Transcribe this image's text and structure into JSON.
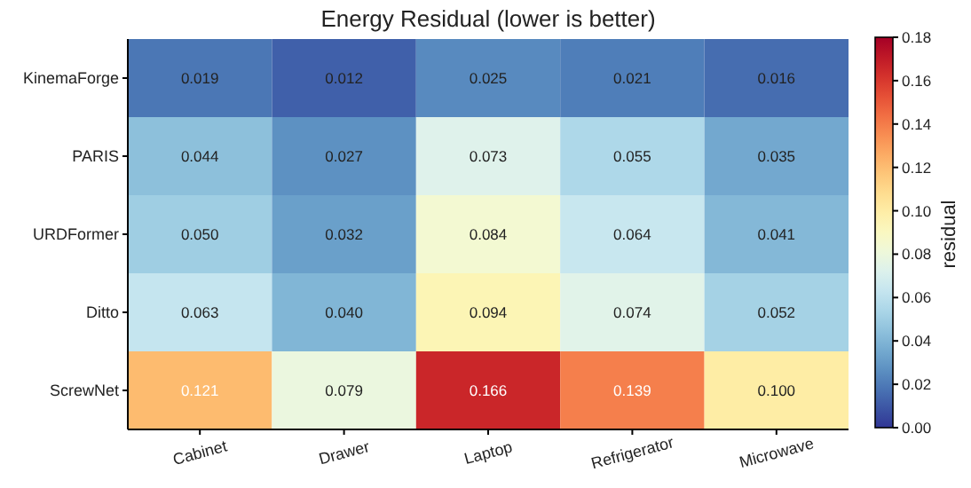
{
  "chart_data": {
    "type": "heatmap",
    "title": "Energy Residual (lower is better)",
    "categories": [
      "Cabinet",
      "Drawer",
      "Laptop",
      "Refrigerator",
      "Microwave"
    ],
    "y_categories": [
      "KinemaForge",
      "PARIS",
      "URDFormer",
      "Ditto",
      "ScrewNet"
    ],
    "cells": [
      [
        0.019,
        0.012,
        0.025,
        0.021,
        0.016
      ],
      [
        0.044,
        0.027,
        0.073,
        0.055,
        0.035
      ],
      [
        0.05,
        0.032,
        0.084,
        0.064,
        0.041
      ],
      [
        0.063,
        0.04,
        0.094,
        0.074,
        0.052
      ],
      [
        0.121,
        0.079,
        0.166,
        0.139,
        0.1
      ]
    ],
    "cell_labels": [
      [
        "0.019",
        "0.012",
        "0.025",
        "0.021",
        "0.016"
      ],
      [
        "0.044",
        "0.027",
        "0.073",
        "0.055",
        "0.035"
      ],
      [
        "0.050",
        "0.032",
        "0.084",
        "0.064",
        "0.041"
      ],
      [
        "0.063",
        "0.040",
        "0.094",
        "0.074",
        "0.052"
      ],
      [
        "0.121",
        "0.079",
        "0.166",
        "0.139",
        "0.100"
      ]
    ],
    "data_labels": true,
    "clabel": "residual",
    "clim": [
      0,
      0.18
    ],
    "cticks": [
      {
        "value": 0,
        "label": "0.00"
      },
      {
        "value": 0.02,
        "label": "0.02"
      },
      {
        "value": 0.04,
        "label": "0.04"
      },
      {
        "value": 0.06,
        "label": "0.06"
      },
      {
        "value": 0.08,
        "label": "0.08"
      },
      {
        "value": 0.1,
        "label": "0.10"
      },
      {
        "value": 0.12,
        "label": "0.12"
      },
      {
        "value": 0.14,
        "label": "0.14"
      },
      {
        "value": 0.16,
        "label": "0.16"
      },
      {
        "value": 0.18,
        "label": "0.18"
      }
    ]
  }
}
